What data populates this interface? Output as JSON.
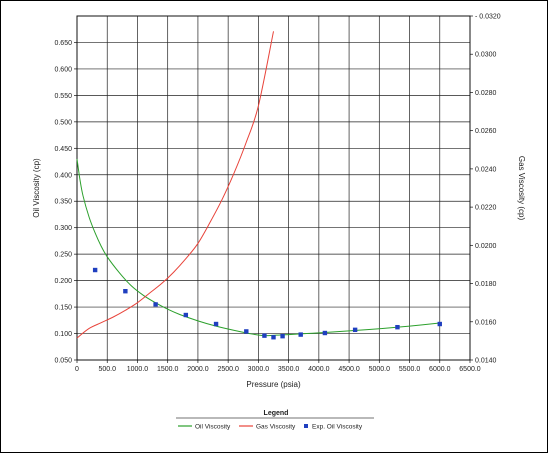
{
  "chart_data": {
    "type": "line",
    "title": "",
    "xlabel": "Pressure (psia)",
    "ylabel_left": "Oil Viscosity (cp)",
    "ylabel_right": "Gas Viscosity (cp)",
    "xlim": [
      0,
      6500
    ],
    "ylim_left": [
      0.05,
      0.7
    ],
    "ylim_right": [
      0.014,
      0.032
    ],
    "grid": true,
    "legend_position": "bottom",
    "x_ticks": [
      {
        "value": 0,
        "label": "0"
      },
      {
        "value": 500,
        "label": "500.0"
      },
      {
        "value": 1000,
        "label": "1000.0"
      },
      {
        "value": 1500,
        "label": "1500.0"
      },
      {
        "value": 2000,
        "label": "2000.0"
      },
      {
        "value": 2500,
        "label": "2500.0"
      },
      {
        "value": 3000,
        "label": "3000.0"
      },
      {
        "value": 3500,
        "label": "3500.0"
      },
      {
        "value": 4000,
        "label": "4000.0"
      },
      {
        "value": 4500,
        "label": "4500.0"
      },
      {
        "value": 5000,
        "label": "5000.0"
      },
      {
        "value": 5500,
        "label": "5500.0"
      },
      {
        "value": 6000,
        "label": "6000.0"
      },
      {
        "value": 6500,
        "label": "6500.0"
      }
    ],
    "y_ticks_left": [
      {
        "value": 0.05,
        "label": "0.050"
      },
      {
        "value": 0.1,
        "label": "0.100"
      },
      {
        "value": 0.15,
        "label": "0.150"
      },
      {
        "value": 0.2,
        "label": "0.200"
      },
      {
        "value": 0.25,
        "label": "0.250"
      },
      {
        "value": 0.3,
        "label": "0.300"
      },
      {
        "value": 0.35,
        "label": "0.350"
      },
      {
        "value": 0.4,
        "label": "0.400"
      },
      {
        "value": 0.45,
        "label": "0.450"
      },
      {
        "value": 0.5,
        "label": "0.500"
      },
      {
        "value": 0.55,
        "label": "0.550"
      },
      {
        "value": 0.6,
        "label": "0.600"
      },
      {
        "value": 0.65,
        "label": "0.650"
      }
    ],
    "y_ticks_right": [
      {
        "value": 0.014,
        "label": "0.0140"
      },
      {
        "value": 0.016,
        "label": "0.0160"
      },
      {
        "value": 0.018,
        "label": "0.0180"
      },
      {
        "value": 0.02,
        "label": "0.0200"
      },
      {
        "value": 0.022,
        "label": "0.0220"
      },
      {
        "value": 0.024,
        "label": "0.0240"
      },
      {
        "value": 0.026,
        "label": "0.0260"
      },
      {
        "value": 0.028,
        "label": "0.0280"
      },
      {
        "value": 0.03,
        "label": "0.0300"
      },
      {
        "value": 0.032,
        "label": "- 0.0320"
      }
    ],
    "legend": {
      "title": "Legend",
      "entries": [
        "Oil Viscosity",
        "Gas Viscosity",
        "Exp. Oil Viscosity"
      ]
    },
    "series": [
      {
        "name": "Oil Viscosity",
        "type": "line",
        "axis": "left",
        "color": "#2ca02c",
        "x": [
          0,
          50,
          100,
          200,
          300,
          400,
          500,
          700,
          900,
          1100,
          1300,
          1500,
          1700,
          2000,
          2300,
          2600,
          2900,
          3100,
          3300,
          3500,
          3800,
          4100,
          4500,
          5000,
          5500,
          6000
        ],
        "y": [
          0.43,
          0.39,
          0.36,
          0.32,
          0.29,
          0.265,
          0.245,
          0.215,
          0.19,
          0.172,
          0.158,
          0.146,
          0.136,
          0.124,
          0.114,
          0.106,
          0.099,
          0.096,
          0.097,
          0.098,
          0.1,
          0.102,
          0.105,
          0.109,
          0.114,
          0.12
        ]
      },
      {
        "name": "Gas Viscosity",
        "type": "line",
        "axis": "right",
        "color": "#e8433a",
        "x": [
          0,
          200,
          400,
          600,
          800,
          1000,
          1200,
          1400,
          1600,
          1800,
          2000,
          2200,
          2400,
          2600,
          2800,
          3000,
          3250
        ],
        "y": [
          0.01515,
          0.01565,
          0.01595,
          0.01625,
          0.0166,
          0.017,
          0.0175,
          0.018,
          0.0186,
          0.0193,
          0.0201,
          0.0212,
          0.0224,
          0.0238,
          0.0254,
          0.0273,
          0.0312
        ]
      },
      {
        "name": "Exp. Oil Viscosity",
        "type": "scatter",
        "axis": "left",
        "color": "#1f3fbf",
        "x": [
          300,
          800,
          1300,
          1800,
          2300,
          2800,
          3100,
          3250,
          3400,
          3700,
          4100,
          4600,
          5300,
          6000
        ],
        "y": [
          0.22,
          0.18,
          0.155,
          0.135,
          0.118,
          0.104,
          0.096,
          0.093,
          0.095,
          0.098,
          0.101,
          0.107,
          0.112,
          0.118
        ]
      }
    ]
  }
}
